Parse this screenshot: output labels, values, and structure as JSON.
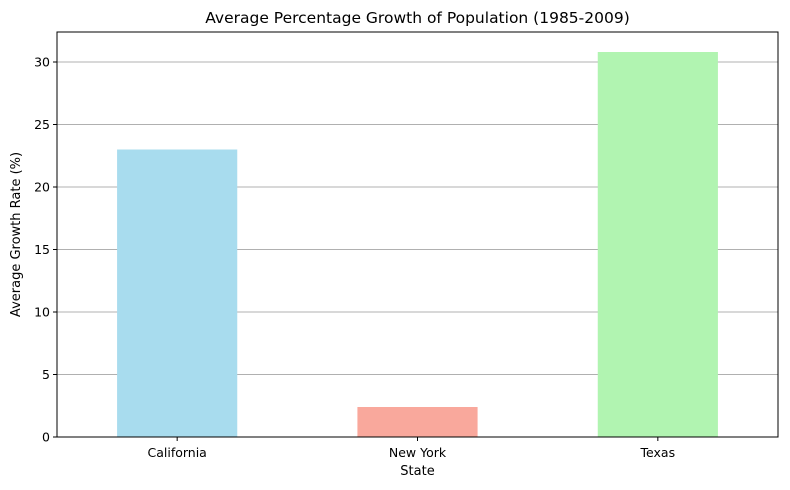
{
  "chart_data": {
    "type": "bar",
    "title": "Average Percentage Growth of Population (1985-2009)",
    "xlabel": "State",
    "ylabel": "Average Growth Rate (%)",
    "categories": [
      "California",
      "New York",
      "Texas"
    ],
    "values": [
      23.0,
      2.4,
      30.8
    ],
    "colors": [
      "#a8dcee",
      "#f9a89c",
      "#b1f4b1"
    ],
    "ylim": [
      0,
      32.4
    ],
    "yticks": [
      0,
      5,
      10,
      15,
      20,
      25,
      30
    ],
    "grid": "y",
    "legend": "none"
  }
}
